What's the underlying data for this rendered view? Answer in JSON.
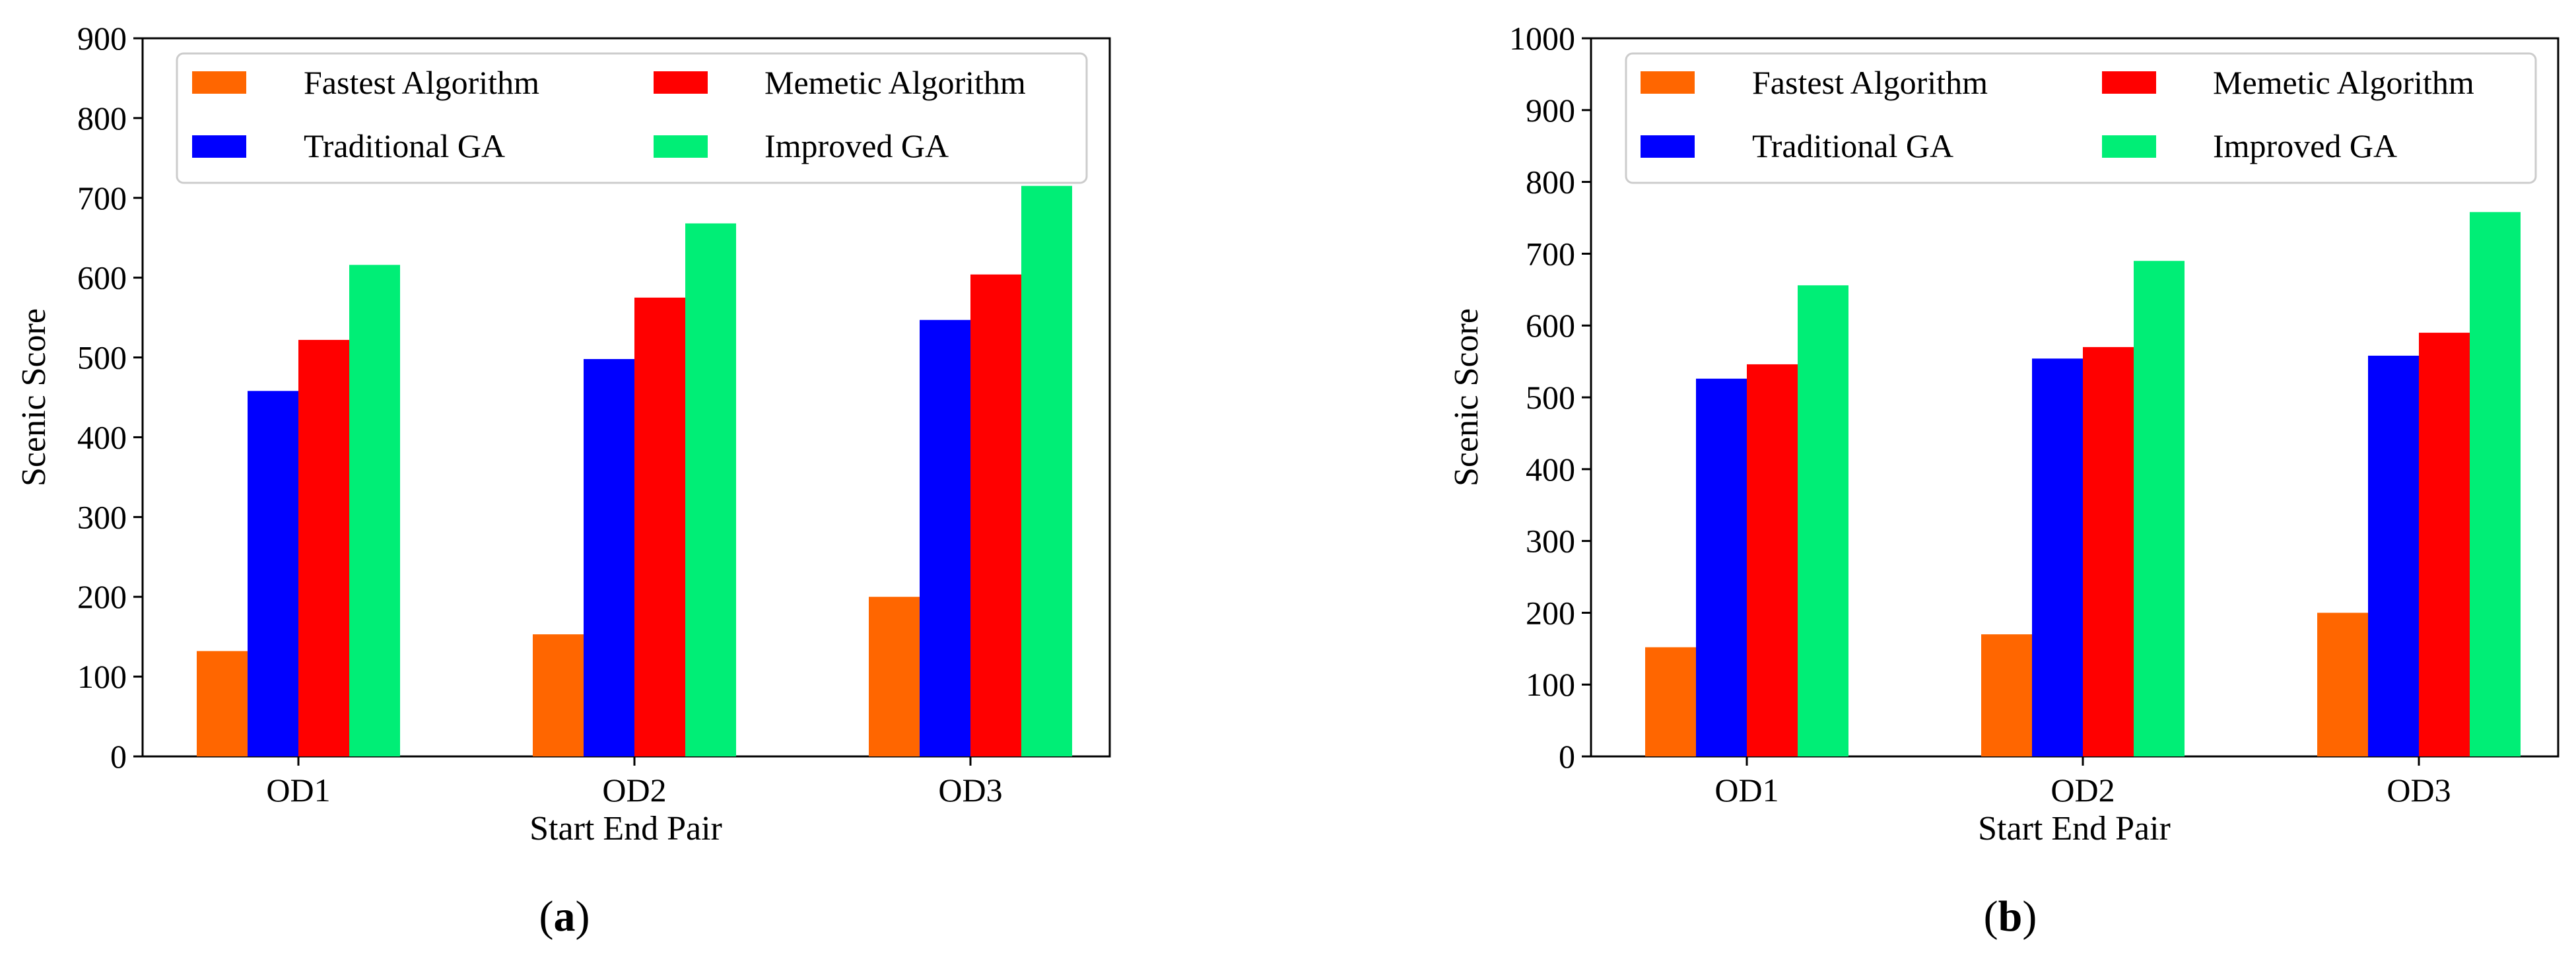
{
  "chart_data": [
    {
      "type": "bar",
      "panel": "a",
      "categories": [
        "OD1",
        "OD2",
        "OD3"
      ],
      "series": [
        {
          "name": "Fastest Algorithm",
          "color": "#FF6600",
          "values": [
            132,
            153,
            200
          ]
        },
        {
          "name": "Traditional GA",
          "color": "#0000FF",
          "values": [
            458,
            498,
            547
          ]
        },
        {
          "name": "Memetic Algorithm",
          "color": "#FF0000",
          "values": [
            522,
            575,
            604
          ]
        },
        {
          "name": "Improved GA",
          "color": "#00EE76",
          "values": [
            616,
            668,
            715
          ]
        }
      ],
      "xlabel": "Start End Pair",
      "ylabel": "Scenic Score",
      "ylim": [
        0,
        900
      ],
      "yticks": [
        0,
        100,
        200,
        300,
        400,
        500,
        600,
        700,
        800,
        900
      ],
      "legend_position": "top",
      "caption": {
        "open": "(",
        "letter": "a",
        "close": ")"
      }
    },
    {
      "type": "bar",
      "panel": "b",
      "categories": [
        "OD1",
        "OD2",
        "OD3"
      ],
      "series": [
        {
          "name": "Fastest Algorithm",
          "color": "#FF6600",
          "values": [
            152,
            170,
            200
          ]
        },
        {
          "name": "Traditional GA",
          "color": "#0000FF",
          "values": [
            526,
            554,
            558
          ]
        },
        {
          "name": "Memetic Algorithm",
          "color": "#FF0000",
          "values": [
            546,
            570,
            590
          ]
        },
        {
          "name": "Improved GA",
          "color": "#00EE76",
          "values": [
            656,
            690,
            758
          ]
        }
      ],
      "xlabel": "Start End Pair",
      "ylabel": "Scenic Score",
      "ylim": [
        0,
        1000
      ],
      "yticks": [
        0,
        100,
        200,
        300,
        400,
        500,
        600,
        700,
        800,
        900,
        1000
      ],
      "legend_position": "top",
      "caption": {
        "open": "(",
        "letter": "b",
        "close": ")"
      }
    }
  ]
}
